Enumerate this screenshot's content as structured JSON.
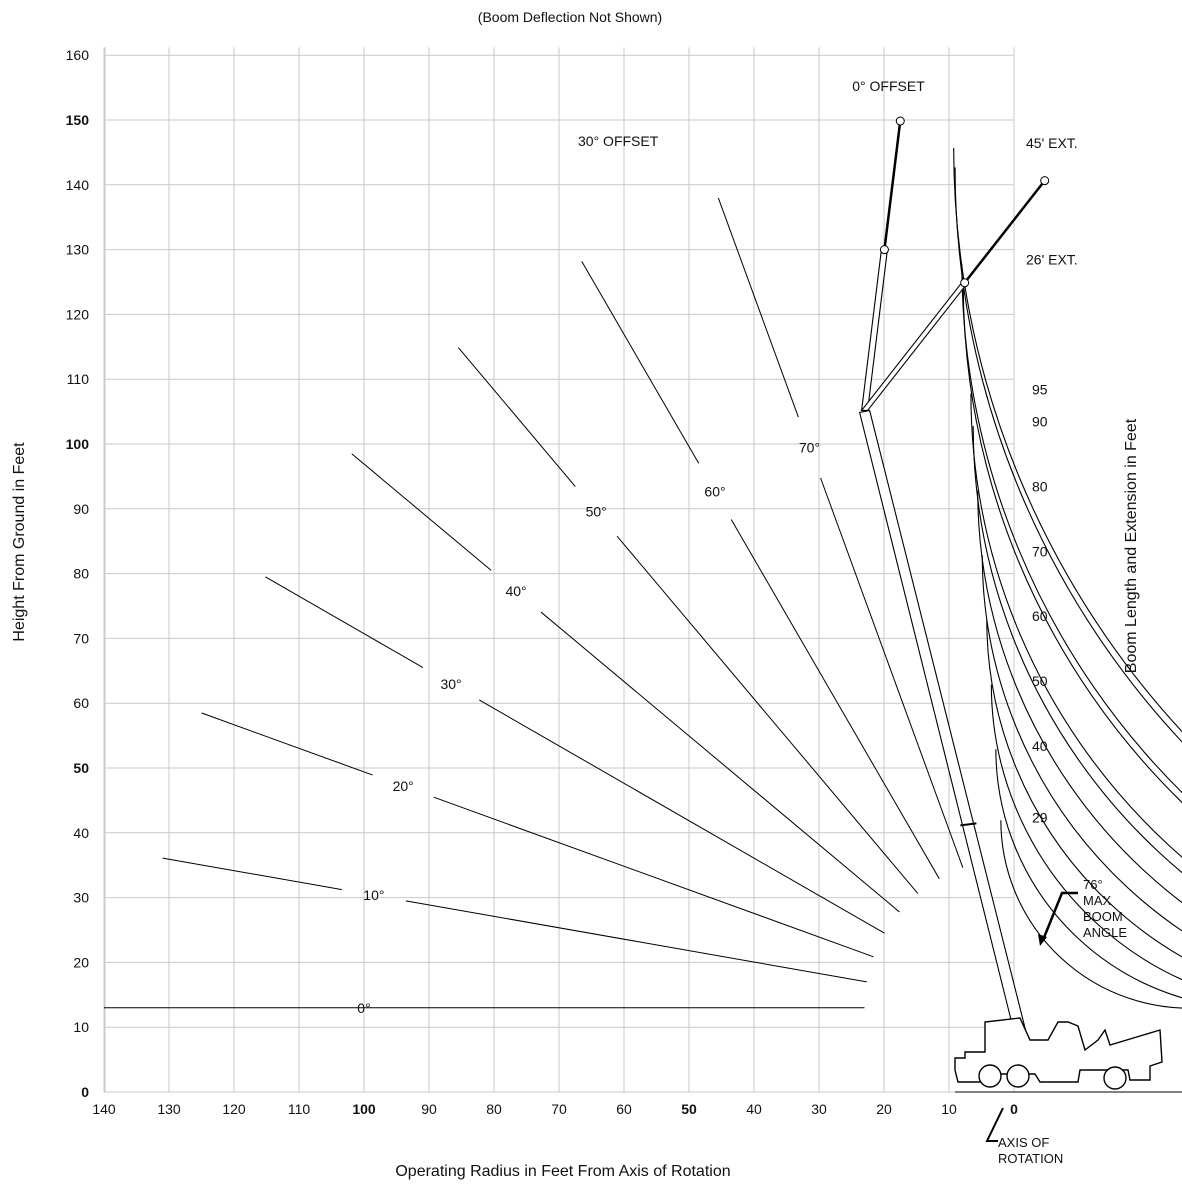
{
  "title": "(Boom Deflection Not Shown)",
  "x_axis_title": "Operating Radius in Feet From Axis of Rotation",
  "y_axis_title": "Height From Ground in Feet",
  "right_axis_title": "Boom Length and Extension in Feet",
  "x_ticks": [
    140,
    130,
    120,
    110,
    100,
    90,
    80,
    70,
    60,
    50,
    40,
    30,
    20,
    10,
    0
  ],
  "y_ticks": [
    0,
    10,
    20,
    30,
    40,
    50,
    60,
    70,
    80,
    90,
    100,
    110,
    120,
    130,
    140,
    150,
    160
  ],
  "bold_ticks": [
    0,
    50,
    100,
    150
  ],
  "boom_lengths": [
    29,
    40,
    50,
    60,
    70,
    80,
    90,
    95
  ],
  "extension_arcs": [
    {
      "label": "26' EXT.",
      "inner": 112,
      "outer": 115
    },
    {
      "label": "45' EXT.",
      "inner": 130,
      "outer": 133
    }
  ],
  "angles": [
    0,
    10,
    20,
    30,
    40,
    50,
    60,
    70
  ],
  "angle_label_suffix": "°",
  "offsets": {
    "zero": "0° OFFSET",
    "thirty": "30° OFFSET"
  },
  "max_boom_angle": [
    "76°",
    "MAX",
    "BOOM",
    "ANGLE"
  ],
  "axis_of_rotation": [
    "AXIS OF",
    "ROTATION"
  ]
}
